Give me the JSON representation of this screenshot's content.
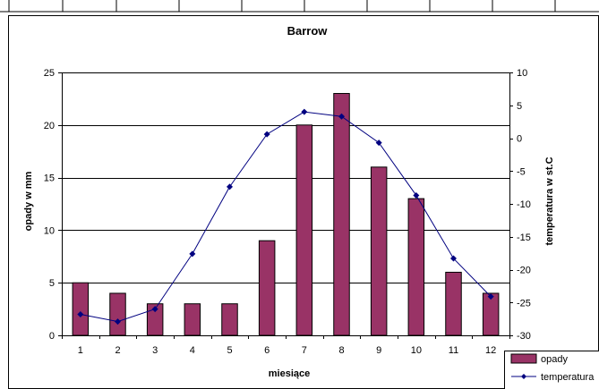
{
  "colors": {
    "bar": "#993366",
    "bar_edge": "#000000",
    "line": "#000080",
    "grid": "#000000",
    "background": "#ffffff"
  },
  "chart_data": {
    "type": "bar",
    "title": "Barrow",
    "xlabel": "miesiące",
    "ylabel": "opady w mm",
    "y2label": "temperatura w st.C",
    "categories": [
      "1",
      "2",
      "3",
      "4",
      "5",
      "6",
      "7",
      "8",
      "9",
      "10",
      "11",
      "12"
    ],
    "ylim": [
      0,
      25
    ],
    "yticks": [
      "0",
      "5",
      "10",
      "15",
      "20",
      "25"
    ],
    "y2lim": [
      -30,
      10
    ],
    "y2ticks": [
      "-30",
      "-25",
      "-20",
      "-15",
      "-10",
      "-5",
      "0",
      "5",
      "10"
    ],
    "grid": true,
    "legend_position": "bottom-right",
    "series": [
      {
        "name": "opady",
        "type": "bar",
        "axis": "left",
        "values": [
          5,
          4,
          3,
          3,
          3,
          9,
          20,
          23,
          16,
          13,
          6,
          4
        ]
      },
      {
        "name": "temperatura",
        "type": "line",
        "axis": "right",
        "marker": "diamond",
        "values": [
          -26.8,
          -27.9,
          -26.0,
          -17.6,
          -7.4,
          0.6,
          4.0,
          3.3,
          -0.7,
          -8.7,
          -18.3,
          -24.1
        ]
      }
    ]
  }
}
